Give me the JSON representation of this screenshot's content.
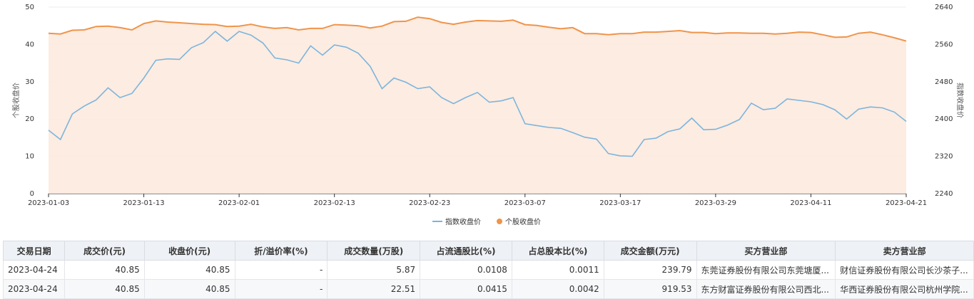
{
  "chart_data": {
    "type": "line",
    "x": [
      "2023-01-03",
      "2023-01-04",
      "2023-01-05",
      "2023-01-06",
      "2023-01-09",
      "2023-01-10",
      "2023-01-11",
      "2023-01-12",
      "2023-01-13",
      "2023-01-16",
      "2023-01-17",
      "2023-01-18",
      "2023-01-19",
      "2023-01-20",
      "2023-01-30",
      "2023-01-31",
      "2023-02-01",
      "2023-02-02",
      "2023-02-03",
      "2023-02-06",
      "2023-02-07",
      "2023-02-08",
      "2023-02-09",
      "2023-02-10",
      "2023-02-13",
      "2023-02-14",
      "2023-02-15",
      "2023-02-16",
      "2023-02-17",
      "2023-02-20",
      "2023-02-21",
      "2023-02-22",
      "2023-02-23",
      "2023-02-24",
      "2023-02-27",
      "2023-02-28",
      "2023-03-01",
      "2023-03-02",
      "2023-03-03",
      "2023-03-06",
      "2023-03-07",
      "2023-03-08",
      "2023-03-09",
      "2023-03-10",
      "2023-03-13",
      "2023-03-14",
      "2023-03-15",
      "2023-03-16",
      "2023-03-17",
      "2023-03-20",
      "2023-03-21",
      "2023-03-22",
      "2023-03-23",
      "2023-03-24",
      "2023-03-27",
      "2023-03-28",
      "2023-03-29",
      "2023-03-30",
      "2023-03-31",
      "2023-04-03",
      "2023-04-04",
      "2023-04-06",
      "2023-04-07",
      "2023-04-10",
      "2023-04-11",
      "2023-04-12",
      "2023-04-13",
      "2023-04-14",
      "2023-04-17",
      "2023-04-18",
      "2023-04-19",
      "2023-04-20",
      "2023-04-21"
    ],
    "x_ticks": [
      "2023-01-03",
      "2023-01-13",
      "2023-02-01",
      "2023-02-13",
      "2023-02-23",
      "2023-03-07",
      "2023-03-17",
      "2023-03-29",
      "2023-04-11",
      "2023-04-21"
    ],
    "series": [
      {
        "name": "指数收盘价",
        "axis": "right",
        "color": "#7cb5dc",
        "values": [
          2376,
          2356,
          2411,
          2428,
          2441,
          2467,
          2446,
          2455,
          2488,
          2526,
          2529,
          2528,
          2553,
          2564,
          2588,
          2567,
          2588,
          2580,
          2563,
          2531,
          2527,
          2520,
          2557,
          2537,
          2559,
          2554,
          2541,
          2513,
          2465,
          2488,
          2479,
          2465,
          2469,
          2446,
          2433,
          2446,
          2457,
          2436,
          2439,
          2446,
          2390,
          2386,
          2382,
          2380,
          2371,
          2361,
          2357,
          2326,
          2321,
          2320,
          2356,
          2359,
          2373,
          2379,
          2402,
          2377,
          2378,
          2387,
          2399,
          2434,
          2420,
          2423,
          2443,
          2440,
          2437,
          2431,
          2420,
          2400,
          2421,
          2426,
          2424,
          2415,
          2395
        ]
      },
      {
        "name": "个股收盘价",
        "axis": "left",
        "color": "#f0944a",
        "values": [
          43.0,
          42.8,
          43.8,
          43.9,
          44.8,
          44.9,
          44.5,
          43.9,
          45.6,
          46.3,
          46.0,
          45.8,
          45.6,
          45.4,
          45.3,
          44.8,
          44.9,
          45.4,
          44.7,
          44.3,
          44.5,
          43.9,
          44.3,
          44.3,
          45.3,
          45.2,
          45.0,
          44.4,
          44.9,
          46.1,
          46.2,
          47.3,
          46.9,
          45.9,
          45.4,
          46.0,
          46.4,
          46.3,
          46.2,
          46.5,
          45.3,
          45.1,
          44.6,
          44.2,
          44.5,
          42.9,
          42.9,
          42.6,
          42.9,
          42.9,
          43.3,
          43.3,
          43.5,
          43.7,
          43.2,
          43.2,
          42.9,
          43.1,
          43.1,
          43.0,
          43.0,
          42.8,
          43.0,
          43.3,
          43.2,
          42.6,
          41.9,
          42.0,
          43.0,
          43.3,
          42.6,
          41.8,
          40.9
        ]
      }
    ],
    "y_left": {
      "label": "个股收盘价",
      "ticks": [
        0,
        10,
        20,
        30,
        40,
        50
      ],
      "range": [
        0,
        50
      ]
    },
    "y_right": {
      "label": "指数收盘价",
      "ticks": [
        2240,
        2320,
        2400,
        2480,
        2560,
        2640
      ],
      "range": [
        2240,
        2640
      ]
    },
    "legend_position": "bottom-center",
    "area_fill": "#fde9dd"
  },
  "table": {
    "headers": [
      "交易日期",
      "成交价(元)",
      "收盘价(元)",
      "折/溢价率(%)",
      "成交数量(万股)",
      "占流通股比(%)",
      "占总股本比(%)",
      "成交金额(万元)",
      "买方营业部",
      "卖方营业部"
    ],
    "rows": [
      [
        "2023-04-24",
        "40.85",
        "40.85",
        "-",
        "5.87",
        "0.0108",
        "0.0011",
        "239.79",
        "东莞证券股份有限公司东莞塘厦...",
        "财信证券股份有限公司长沙茶子..."
      ],
      [
        "2023-04-24",
        "40.85",
        "40.85",
        "-",
        "22.51",
        "0.0415",
        "0.0042",
        "919.53",
        "东方财富证券股份有限公司西北...",
        "华西证券股份有限公司杭州学院..."
      ]
    ]
  }
}
